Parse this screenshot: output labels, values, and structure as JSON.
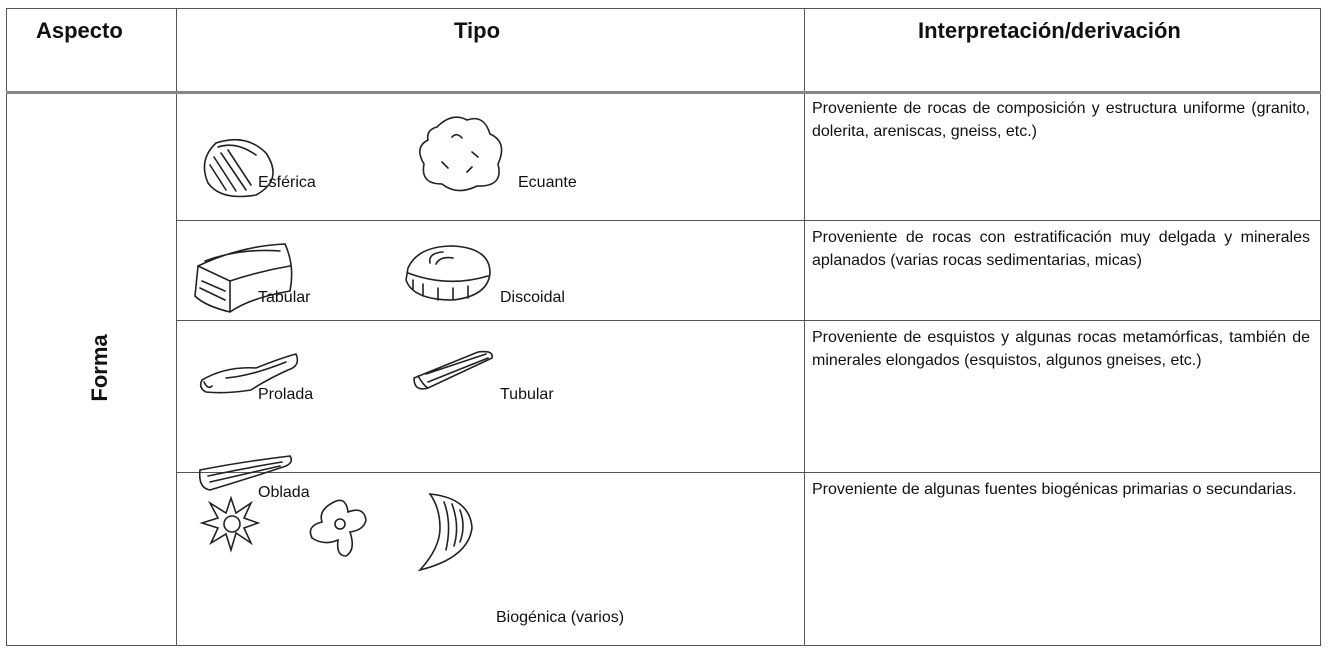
{
  "table": {
    "headers": [
      "Aspecto",
      "Tipo",
      "Interpretación/derivación"
    ],
    "aspect": "Forma",
    "rows": [
      {
        "types": [
          "Esférica",
          "Ecuante"
        ],
        "interpretation": "Proveniente de rocas de composición y estructura uniforme (granito, dolerita, areniscas, gneiss, etc.)"
      },
      {
        "types": [
          "Tabular",
          "Discoidal"
        ],
        "interpretation": "Proveniente de rocas con estratificación muy delgada y minerales aplanados (varias rocas sedimentarias, micas)"
      },
      {
        "types": [
          "Prolada",
          "Tubular",
          "Oblada"
        ],
        "interpretation": "Proveniente de esquistos y algunas rocas metamórficas, también de minerales elongados (esquistos, algunos gneises, etc.)"
      },
      {
        "types": [
          "Biogénica (varios)"
        ],
        "interpretation": "Proveniente de algunas fuentes biogénicas primarias o secundarias."
      }
    ]
  }
}
